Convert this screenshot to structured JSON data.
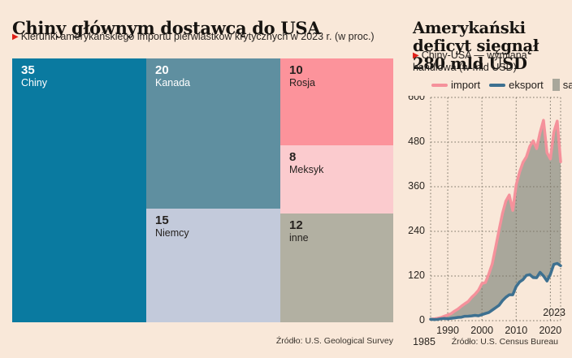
{
  "page": {
    "background": "#f9e8d9",
    "accent_red": "#df1f17"
  },
  "left_panel": {
    "title": "Chiny głównym dostawcą do USA",
    "bullet_icon": "▶",
    "subtitle": "Kierunki amerykańskiego importu pierwiastków krytycznych w 2023 r. (w proc.)",
    "source": "Źródło: U.S. Geological Survey"
  },
  "right_panel": {
    "title": "Amerykański deficyt sięgnął 280 mld USD",
    "bullet_icon": "▶",
    "subtitle": "Chiny-USA — wymiana handlowa (w mld USD)",
    "source": "Źródło: U.S. Census Bureau",
    "legend": [
      {
        "label": "import",
        "swatch": "line",
        "color": "#f5919b"
      },
      {
        "label": "eksport",
        "swatch": "line",
        "color": "#3d7090"
      },
      {
        "label": "saldo",
        "swatch": "rect",
        "color": "#a9a79b"
      }
    ]
  },
  "chart_data": [
    {
      "type": "treemap",
      "title": "Kierunki amerykańskiego importu pierwiastków krytycznych w 2023 r.",
      "unit": "proc.",
      "items": [
        {
          "label": "Chiny",
          "value": 35,
          "color": "#0a7aa0",
          "text_color": "#ffffff"
        },
        {
          "label": "Kanada",
          "value": 20,
          "color": "#5f8fa0",
          "text_color": "#ffffff"
        },
        {
          "label": "Rosja",
          "value": 10,
          "color": "#fc939b",
          "text_color": "#26221f"
        },
        {
          "label": "Meksyk",
          "value": 8,
          "color": "#fbcbce",
          "text_color": "#26221f"
        },
        {
          "label": "Niemcy",
          "value": 15,
          "color": "#c3cadb",
          "text_color": "#26221f"
        },
        {
          "label": "inne",
          "value": 12,
          "color": "#b2b0a2",
          "text_color": "#26221f"
        }
      ]
    },
    {
      "type": "line",
      "title": "Chiny-USA — wymiana handlowa (w mld USD)",
      "grid": "dashed",
      "ylim": [
        0,
        600
      ],
      "yticks": [
        0,
        120,
        240,
        360,
        480,
        600
      ],
      "xticks": [
        1990,
        2000,
        2010,
        2020
      ],
      "x_edge_labels": [
        "1985",
        "2023"
      ],
      "x": [
        1985,
        1986,
        1987,
        1988,
        1989,
        1990,
        1991,
        1992,
        1993,
        1994,
        1995,
        1996,
        1997,
        1998,
        1999,
        2000,
        2001,
        2002,
        2003,
        2004,
        2005,
        2006,
        2007,
        2008,
        2009,
        2010,
        2011,
        2012,
        2013,
        2014,
        2015,
        2016,
        2017,
        2018,
        2019,
        2020,
        2021,
        2022,
        2023
      ],
      "series": [
        {
          "name": "import",
          "color": "#f5919b",
          "values": [
            3.9,
            4.8,
            6.3,
            8.5,
            12.0,
            15.2,
            19.0,
            25.7,
            31.5,
            38.8,
            45.6,
            51.5,
            62.6,
            71.2,
            81.8,
            100.0,
            102.3,
            125.2,
            152.4,
            196.7,
            243.5,
            287.8,
            321.4,
            337.8,
            296.4,
            364.9,
            399.4,
            425.6,
            440.4,
            468.5,
            483.2,
            462.6,
            505.5,
            538.5,
            451.7,
            434.7,
            506.4,
            536.3,
            427.2
          ]
        },
        {
          "name": "eksport",
          "color": "#3d7090",
          "values": [
            3.9,
            3.1,
            3.5,
            5.0,
            5.8,
            4.8,
            6.3,
            7.4,
            8.8,
            9.3,
            11.7,
            12.0,
            12.8,
            14.2,
            13.1,
            16.2,
            19.2,
            22.1,
            28.4,
            34.7,
            41.2,
            53.7,
            62.9,
            69.7,
            69.5,
            91.9,
            104.1,
            110.5,
            121.7,
            123.7,
            115.9,
            115.5,
            129.8,
            120.3,
            106.4,
            124.5,
            151.1,
            153.8,
            147.8
          ]
        }
      ],
      "area_between": {
        "name": "saldo",
        "color": "#a9a79b",
        "note": "saldo = import − eksport (2023 ≈ 280)"
      }
    }
  ]
}
